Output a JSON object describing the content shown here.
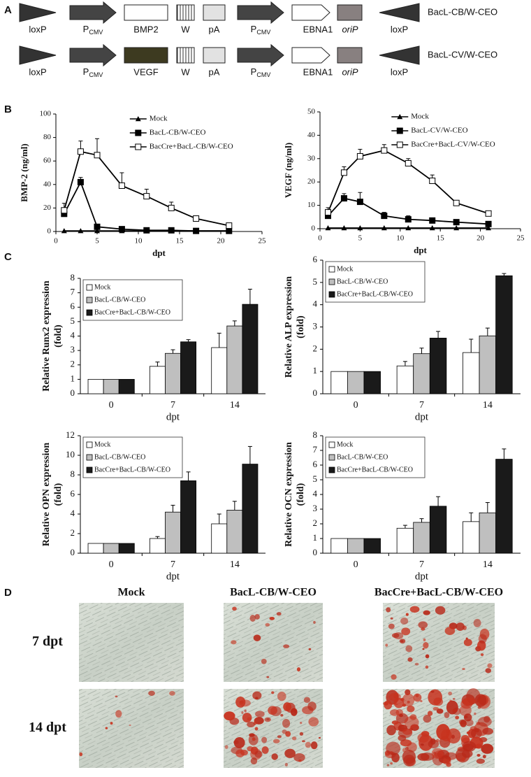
{
  "panel_labels": [
    "A",
    "B",
    "C",
    "D"
  ],
  "constructs": [
    {
      "name": "BacL-CB/W-CEO",
      "elements": [
        "loxP",
        {
          "text": "P",
          "sub": "CMV"
        },
        "BMP2",
        "W",
        "pA",
        {
          "text": "P",
          "sub": "CMV"
        },
        "EBNA1",
        "oriP",
        "loxP"
      ]
    },
    {
      "name": "BacL-CV/W-CEO",
      "elements": [
        "loxP",
        {
          "text": "P",
          "sub": "CMV"
        },
        "VEGF",
        "W",
        "pA",
        {
          "text": "P",
          "sub": "CMV"
        },
        "EBNA1",
        "oriP",
        "loxP"
      ]
    }
  ],
  "chart_data": [
    {
      "type": "line",
      "y_label": [
        "BMP-2 (ng/ml)"
      ],
      "x_label": "dpt",
      "legend": "upper right",
      "x": [
        1,
        3,
        5,
        8,
        11,
        14,
        17,
        21
      ],
      "xlim": [
        0,
        25
      ],
      "xticks": [
        0,
        5,
        10,
        15,
        20,
        25
      ],
      "ylim": [
        0,
        100
      ],
      "yticks": [
        0,
        20,
        40,
        60,
        80,
        100
      ],
      "series": [
        {
          "name": "Mock",
          "color": "#000000",
          "marker": "triangle",
          "values": [
            0.5,
            0.5,
            0.5,
            0.5,
            0.5,
            0.5,
            0.5,
            0.5
          ]
        },
        {
          "name": "BacL-CB/W-CEO",
          "color": "#000000",
          "marker": "square",
          "values": [
            15,
            42,
            4,
            2,
            1,
            1,
            0.5,
            0.5
          ],
          "errors": [
            5,
            4,
            1,
            1,
            1,
            1,
            0.5,
            0.5
          ]
        },
        {
          "name": "BacCre+BacL-CB/W-CEO",
          "color": "#000000",
          "marker": "open-square",
          "values": [
            18,
            68,
            65,
            39,
            30,
            20,
            11,
            5
          ],
          "errors": [
            6,
            9,
            14,
            11,
            6,
            5,
            1,
            1
          ]
        }
      ]
    },
    {
      "type": "line",
      "y_label": [
        "VEGF (ng/ml)"
      ],
      "x_label": "dpt",
      "legend": "upper right",
      "x": [
        1,
        3,
        5,
        8,
        11,
        14,
        17,
        21
      ],
      "xlim": [
        0,
        25
      ],
      "xticks": [
        0,
        5,
        10,
        15,
        20,
        25
      ],
      "ylim": [
        0,
        50
      ],
      "yticks": [
        0,
        10,
        20,
        30,
        40,
        50
      ],
      "series": [
        {
          "name": "Mock",
          "color": "#000000",
          "marker": "triangle",
          "values": [
            0.3,
            0.3,
            0.3,
            0.3,
            0.3,
            0.3,
            0.3,
            0.3
          ]
        },
        {
          "name": "BacL-CV/W-CEO",
          "color": "#000000",
          "marker": "square",
          "values": [
            5.5,
            13,
            11.5,
            5.5,
            4,
            3.5,
            2.8,
            2
          ],
          "errors": [
            1.5,
            2,
            4,
            1.5,
            1.5,
            1,
            0.8,
            0.8
          ]
        },
        {
          "name": "BacCre+BacL-CV/W-CEO",
          "color": "#000000",
          "marker": "open-square",
          "values": [
            7,
            24,
            31,
            33.5,
            28,
            20.5,
            11,
            6.5
          ],
          "errors": [
            2,
            2.5,
            3,
            2.5,
            2,
            2.5,
            0.5,
            0.5
          ]
        }
      ]
    },
    {
      "type": "bar",
      "y_label": [
        "Relative Runx2 expression",
        "(fold)"
      ],
      "x_label": "dpt",
      "legend": "upper left",
      "categories": [
        "0",
        "7",
        "14"
      ],
      "ylim": [
        0,
        8
      ],
      "yticks": [
        0,
        1,
        2,
        3,
        4,
        5,
        6,
        7,
        8
      ],
      "series": [
        {
          "name": "Mock",
          "color": "#ffffff",
          "values": [
            1,
            1.9,
            3.2
          ],
          "errors": [
            0,
            0.3,
            1
          ]
        },
        {
          "name": "BacL-CB/W-CEO",
          "color": "#bfbfbf",
          "values": [
            1,
            2.8,
            4.7
          ],
          "errors": [
            0,
            0.25,
            0.35
          ]
        },
        {
          "name": "BacCre+BacL-CB/W-CEO",
          "color": "#1a1a1a",
          "values": [
            1,
            3.6,
            6.2
          ],
          "errors": [
            0,
            0.15,
            1.05
          ]
        }
      ]
    },
    {
      "type": "bar",
      "y_label": [
        "Relative ALP expression",
        "(fold)"
      ],
      "x_label": "dpt",
      "legend": "upper left",
      "categories": [
        "0",
        "7",
        "14"
      ],
      "ylim": [
        0,
        6
      ],
      "yticks": [
        0,
        1,
        2,
        3,
        4,
        5,
        6
      ],
      "series": [
        {
          "name": "Mock",
          "color": "#ffffff",
          "values": [
            1,
            1.25,
            1.85
          ],
          "errors": [
            0,
            0.2,
            0.6
          ]
        },
        {
          "name": "BacL-CB/W-CEO",
          "color": "#bfbfbf",
          "values": [
            1,
            1.8,
            2.6
          ],
          "errors": [
            0,
            0.25,
            0.35
          ]
        },
        {
          "name": "BacCre+BacL-CB/W-CEO",
          "color": "#1a1a1a",
          "values": [
            1,
            2.5,
            5.3
          ],
          "errors": [
            0,
            0.3,
            0.1
          ]
        }
      ]
    },
    {
      "type": "bar",
      "y_label": [
        "Relative OPN expression",
        "(fold)"
      ],
      "x_label": "dpt",
      "legend": "upper left",
      "categories": [
        "0",
        "7",
        "14"
      ],
      "ylim": [
        0,
        12
      ],
      "yticks": [
        0,
        2,
        4,
        6,
        8,
        10,
        12
      ],
      "series": [
        {
          "name": "Mock",
          "color": "#ffffff",
          "values": [
            1,
            1.5,
            3
          ],
          "errors": [
            0,
            0.2,
            1
          ]
        },
        {
          "name": "BacL-CB/W-CEO",
          "color": "#bfbfbf",
          "values": [
            1,
            4.2,
            4.4
          ],
          "errors": [
            0,
            0.7,
            0.9
          ]
        },
        {
          "name": "BacCre+BacL-CB/W-CEO",
          "color": "#1a1a1a",
          "values": [
            1,
            7.4,
            9.1
          ],
          "errors": [
            0,
            0.9,
            1.8
          ]
        }
      ]
    },
    {
      "type": "bar",
      "y_label": [
        "Relative OCN expression",
        "(fold)"
      ],
      "x_label": "dpt",
      "legend": "upper left",
      "categories": [
        "0",
        "7",
        "14"
      ],
      "ylim": [
        0,
        8
      ],
      "yticks": [
        0,
        1,
        2,
        3,
        4,
        5,
        6,
        7,
        8
      ],
      "series": [
        {
          "name": "Mock",
          "color": "#ffffff",
          "values": [
            1,
            1.7,
            2.15
          ],
          "errors": [
            0,
            0.2,
            0.6
          ]
        },
        {
          "name": "BacL-CB/W-CEO",
          "color": "#bfbfbf",
          "values": [
            1,
            2.1,
            2.75
          ],
          "errors": [
            0,
            0.25,
            0.7
          ]
        },
        {
          "name": "BacCre+BacL-CB/W-CEO",
          "color": "#1a1a1a",
          "values": [
            1,
            3.2,
            6.4
          ],
          "errors": [
            0,
            0.65,
            0.7
          ]
        }
      ]
    }
  ],
  "images": {
    "columns": [
      "Mock",
      "BacL-CB/W-CEO",
      "BacCre+BacL-CB/W-CEO"
    ],
    "rows": [
      "7 dpt",
      "14 dpt"
    ]
  }
}
